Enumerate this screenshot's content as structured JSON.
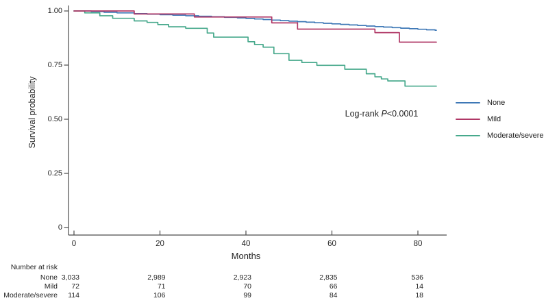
{
  "colors": {
    "axis": "#4a4a4a",
    "text": "#1f1f1f",
    "none_line": "#3e78b6",
    "mild_line": "#b03766",
    "moderate_line": "#47a98c"
  },
  "chart_data": {
    "type": "line",
    "subtype": "kaplan-meier-step",
    "title": "",
    "xlabel": "Months",
    "ylabel": "Survival probability",
    "xlim": [
      0,
      86
    ],
    "ylim": [
      0,
      1.0
    ],
    "grid": false,
    "legend_position": "right",
    "x_ticks": [
      {
        "value": 0,
        "label": "0"
      },
      {
        "value": 20,
        "label": "20"
      },
      {
        "value": 40,
        "label": "40"
      },
      {
        "value": 60,
        "label": "60"
      },
      {
        "value": 80,
        "label": "80"
      }
    ],
    "y_ticks": [
      {
        "value": 1.0,
        "label": "1.00"
      },
      {
        "value": 0.75,
        "label": "0.75"
      },
      {
        "value": 0.5,
        "label": "0.50"
      },
      {
        "value": 0.25,
        "label": "0.25"
      },
      {
        "value": 0.0,
        "label": "0"
      }
    ],
    "t_end": 84.3,
    "annotation": {
      "prefix": "Log-rank ",
      "stat": "P",
      "suffix": "<0.0001"
    },
    "series": [
      {
        "name": "None",
        "color": "#3e78b6",
        "points": [
          [
            0,
            1.0
          ],
          [
            4,
            0.997
          ],
          [
            7,
            0.994
          ],
          [
            10,
            0.991
          ],
          [
            14,
            0.988
          ],
          [
            17,
            0.9855
          ],
          [
            20,
            0.983
          ],
          [
            23,
            0.9805
          ],
          [
            26,
            0.978
          ],
          [
            29,
            0.9755
          ],
          [
            32,
            0.973
          ],
          [
            35,
            0.9705
          ],
          [
            38,
            0.968
          ],
          [
            40,
            0.9655
          ],
          [
            42,
            0.963
          ],
          [
            44,
            0.9605
          ],
          [
            46,
            0.958
          ],
          [
            48,
            0.9555
          ],
          [
            50,
            0.953
          ],
          [
            52,
            0.9505
          ],
          [
            54,
            0.948
          ],
          [
            56,
            0.9455
          ],
          [
            58,
            0.943
          ],
          [
            60,
            0.9405
          ],
          [
            62,
            0.938
          ],
          [
            64,
            0.9355
          ],
          [
            66,
            0.933
          ],
          [
            68,
            0.9305
          ],
          [
            70,
            0.928
          ],
          [
            72,
            0.9255
          ],
          [
            74,
            0.923
          ],
          [
            76,
            0.9205
          ],
          [
            78,
            0.918
          ],
          [
            80,
            0.9155
          ],
          [
            82,
            0.913
          ],
          [
            84,
            0.911
          ]
        ]
      },
      {
        "name": "Mild",
        "color": "#b03766",
        "points": [
          [
            0,
            1.0
          ],
          [
            14,
            0.986
          ],
          [
            28,
            0.972
          ],
          [
            46,
            0.945
          ],
          [
            52,
            0.916
          ],
          [
            70,
            0.9
          ],
          [
            75.7,
            0.856
          ]
        ]
      },
      {
        "name": "Moderate/severe",
        "color": "#47a98c",
        "points": [
          [
            0,
            1.0
          ],
          [
            2.5,
            0.991
          ],
          [
            6,
            0.978
          ],
          [
            9,
            0.966
          ],
          [
            14,
            0.954
          ],
          [
            17,
            0.947
          ],
          [
            19.5,
            0.937
          ],
          [
            22,
            0.927
          ],
          [
            26,
            0.92
          ],
          [
            31,
            0.898
          ],
          [
            32.5,
            0.879
          ],
          [
            40.5,
            0.858
          ],
          [
            42,
            0.845
          ],
          [
            44,
            0.833
          ],
          [
            46.5,
            0.803
          ],
          [
            50,
            0.772
          ],
          [
            53,
            0.762
          ],
          [
            56.5,
            0.749
          ],
          [
            63,
            0.731
          ],
          [
            68,
            0.71
          ],
          [
            70,
            0.696
          ],
          [
            71.5,
            0.686
          ],
          [
            73,
            0.677
          ],
          [
            77,
            0.653
          ]
        ]
      }
    ]
  },
  "risk_table": {
    "title": "Number at risk",
    "columns_months": [
      0,
      20,
      40,
      60,
      80
    ],
    "rows": [
      {
        "label": "None",
        "values": [
          "3,033",
          "2,989",
          "2,923",
          "2,835",
          "536"
        ]
      },
      {
        "label": "Mild",
        "values": [
          "72",
          "71",
          "70",
          "66",
          "14"
        ]
      },
      {
        "label": "Moderate/severe",
        "values": [
          "114",
          "106",
          "99",
          "84",
          "18"
        ]
      }
    ]
  }
}
